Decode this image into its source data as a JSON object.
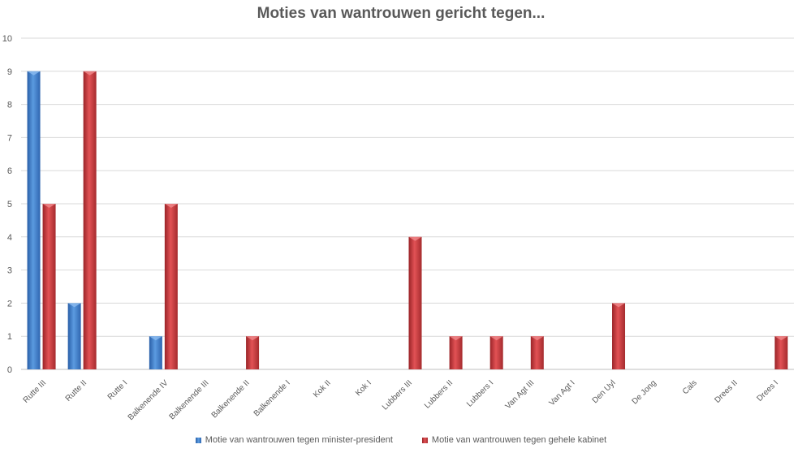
{
  "chart_data": {
    "type": "bar",
    "title": "Moties van wantrouwen gericht tegen...",
    "categories": [
      "Rutte III",
      "Rutte II",
      "Rutte I",
      "Balkenende IV",
      "Balkenende III",
      "Balkenende II",
      "Balkenende I",
      "Kok II",
      "Kok I",
      "Lubbers III",
      "Lubbers II",
      "Lubbers I",
      "Van Agt III",
      "Van Agt I",
      "Den Uyl",
      "De Jong",
      "Cals",
      "Drees II",
      "Drees I"
    ],
    "series": [
      {
        "name": "Motie van wantrouwen tegen minister-president",
        "color": "#3a78c9",
        "values": [
          9,
          2,
          0,
          1,
          0,
          0,
          0,
          0,
          0,
          0,
          0,
          0,
          0,
          0,
          0,
          0,
          0,
          0,
          0
        ]
      },
      {
        "name": "Motie van wantrouwen tegen gehele kabinet",
        "color": "#c0393b",
        "values": [
          5,
          9,
          0,
          5,
          0,
          1,
          0,
          0,
          0,
          4,
          1,
          1,
          1,
          0,
          2,
          0,
          0,
          0,
          1
        ]
      }
    ],
    "ylim": [
      0,
      10
    ],
    "yticks": [
      0,
      1,
      2,
      3,
      4,
      5,
      6,
      7,
      8,
      9,
      10
    ],
    "grid": true,
    "legend_position": "bottom"
  }
}
